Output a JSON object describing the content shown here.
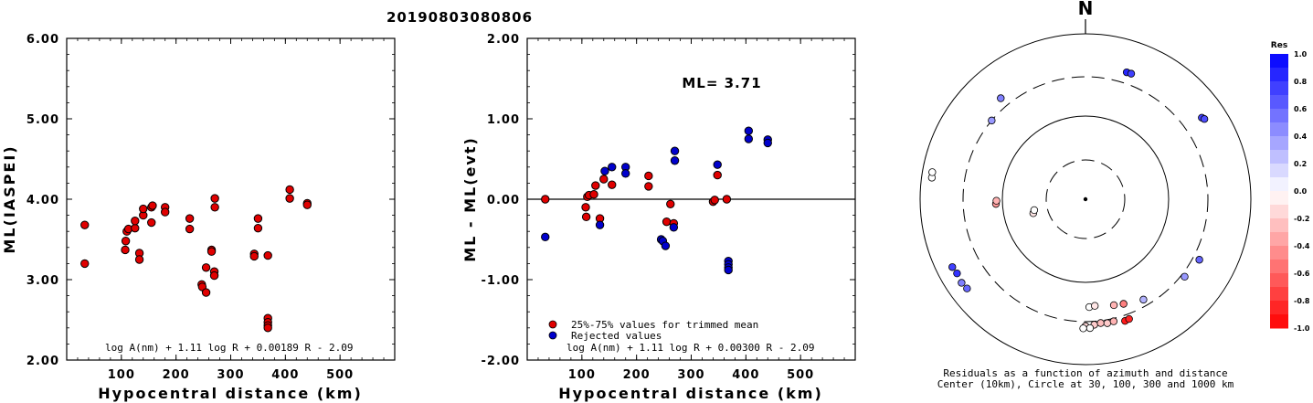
{
  "title": "20190803080806",
  "chart_data": [
    {
      "type": "scatter",
      "ylabel": "ML(IASPEI)",
      "xlabel": "Hypocentral distance (km)",
      "xlim": [
        0,
        600
      ],
      "ylim": [
        2.0,
        6.0
      ],
      "xticks": [
        "100",
        "200",
        "300",
        "400",
        "500"
      ],
      "yticks": [
        "2.00",
        "3.00",
        "4.00",
        "5.00",
        "6.00"
      ],
      "formula": "log A(nm) + 1.11 log R + 0.00189 R - 2.09",
      "series": [
        {
          "color": "#e00000",
          "points": [
            [
              33,
              3.68
            ],
            [
              33,
              3.2
            ],
            [
              107,
              3.37
            ],
            [
              108,
              3.48
            ],
            [
              110,
              3.6
            ],
            [
              113,
              3.63
            ],
            [
              125,
              3.64
            ],
            [
              125,
              3.73
            ],
            [
              133,
              3.33
            ],
            [
              133,
              3.25
            ],
            [
              140,
              3.8
            ],
            [
              140,
              3.88
            ],
            [
              155,
              3.9
            ],
            [
              155,
              3.71
            ],
            [
              157,
              3.92
            ],
            [
              180,
              3.9
            ],
            [
              180,
              3.84
            ],
            [
              225,
              3.76
            ],
            [
              225,
              3.63
            ],
            [
              247,
              2.94
            ],
            [
              248,
              2.91
            ],
            [
              255,
              3.15
            ],
            [
              255,
              2.84
            ],
            [
              265,
              3.37
            ],
            [
              265,
              3.35
            ],
            [
              270,
              3.1
            ],
            [
              270,
              3.05
            ],
            [
              271,
              3.9
            ],
            [
              271,
              4.01
            ],
            [
              343,
              3.32
            ],
            [
              343,
              3.29
            ],
            [
              350,
              3.76
            ],
            [
              350,
              3.64
            ],
            [
              368,
              3.3
            ],
            [
              368,
              2.52
            ],
            [
              368,
              2.47
            ],
            [
              368,
              2.43
            ],
            [
              368,
              2.4
            ],
            [
              408,
              4.12
            ],
            [
              408,
              4.01
            ],
            [
              440,
              3.95
            ],
            [
              440,
              3.93
            ]
          ]
        }
      ]
    },
    {
      "type": "scatter",
      "ylabel": "ML - ML(evt)",
      "xlabel": "Hypocentral distance (km)",
      "xlim": [
        0,
        600
      ],
      "ylim": [
        -2.0,
        2.0
      ],
      "xticks": [
        "100",
        "200",
        "300",
        "400",
        "500"
      ],
      "yticks": [
        "-2.00",
        "-1.00",
        "0.00",
        "1.00",
        "2.00"
      ],
      "annotation": "ML= 3.71",
      "formula": "log A(nm) + 1.11 log R + 0.00300 R - 2.09",
      "legend": [
        {
          "label": "25%-75% values for trimmed mean",
          "color": "#e00000"
        },
        {
          "label": "Rejected values",
          "color": "#0000cc"
        }
      ],
      "series": [
        {
          "name": "25%-75% values for trimmed mean",
          "color": "#e00000",
          "points": [
            [
              33,
              0.0
            ],
            [
              107,
              -0.1
            ],
            [
              108,
              -0.22
            ],
            [
              110,
              0.03
            ],
            [
              113,
              0.05
            ],
            [
              122,
              0.06
            ],
            [
              125,
              0.17
            ],
            [
              133,
              -0.24
            ],
            [
              140,
              0.25
            ],
            [
              155,
              0.18
            ],
            [
              222,
              0.29
            ],
            [
              222,
              0.16
            ],
            [
              255,
              -0.28
            ],
            [
              262,
              -0.06
            ],
            [
              268,
              -0.3
            ],
            [
              340,
              -0.03
            ],
            [
              343,
              -0.01
            ],
            [
              348,
              0.3
            ],
            [
              365,
              0.0
            ]
          ]
        },
        {
          "name": "Rejected values",
          "color": "#0000cc",
          "points": [
            [
              33,
              -0.47
            ],
            [
              133,
              -0.32
            ],
            [
              142,
              0.35
            ],
            [
              155,
              0.4
            ],
            [
              180,
              0.4
            ],
            [
              180,
              0.32
            ],
            [
              245,
              -0.5
            ],
            [
              248,
              -0.52
            ],
            [
              253,
              -0.58
            ],
            [
              268,
              -0.35
            ],
            [
              270,
              0.6
            ],
            [
              270,
              0.48
            ],
            [
              348,
              0.43
            ],
            [
              368,
              -0.77
            ],
            [
              368,
              -0.81
            ],
            [
              368,
              -0.85
            ],
            [
              368,
              -0.88
            ],
            [
              405,
              0.85
            ],
            [
              405,
              0.75
            ],
            [
              440,
              0.74
            ],
            [
              440,
              0.7
            ]
          ]
        }
      ]
    },
    {
      "type": "scatter",
      "subtype": "polar",
      "north_label": "N",
      "caption_line1": "Residuals as a function of azimuth and distance",
      "caption_line2": "Center (10km), Circle at 30, 100, 300 and 1000 km",
      "rings_km": [
        30,
        100,
        300,
        1000
      ],
      "colorbar": {
        "title": "Res",
        "ticks": [
          "1.0",
          "0.8",
          "0.6",
          "0.4",
          "0.2",
          "0.0",
          "-0.2",
          "-0.4",
          "-0.6",
          "-0.8",
          "-1.0"
        ]
      },
      "points": [
        {
          "azimuth_deg": 18,
          "distance_km": 408,
          "res": 0.85
        },
        {
          "azimuth_deg": 20,
          "distance_km": 410,
          "res": 0.75
        },
        {
          "azimuth_deg": 55,
          "distance_km": 520,
          "res": 0.74
        },
        {
          "azimuth_deg": 56,
          "distance_km": 540,
          "res": 0.7
        },
        {
          "azimuth_deg": 310,
          "distance_km": 300,
          "res": 0.4
        },
        {
          "azimuth_deg": 320,
          "distance_km": 390,
          "res": 0.5
        },
        {
          "azimuth_deg": 267,
          "distance_km": 120,
          "res": -0.4
        },
        {
          "azimuth_deg": 269,
          "distance_km": 118,
          "res": -0.3
        },
        {
          "azimuth_deg": 255,
          "distance_km": 45,
          "res": -0.1
        },
        {
          "azimuth_deg": 258,
          "distance_km": 43,
          "res": 0.0
        },
        {
          "azimuth_deg": 278,
          "distance_km": 750,
          "res": 0.0
        },
        {
          "azimuth_deg": 280,
          "distance_km": 760,
          "res": 0.0
        },
        {
          "azimuth_deg": 240,
          "distance_km": 620,
          "res": 0.8
        },
        {
          "azimuth_deg": 243,
          "distance_km": 640,
          "res": 0.75
        },
        {
          "azimuth_deg": 233,
          "distance_km": 620,
          "res": 0.6
        },
        {
          "azimuth_deg": 236,
          "distance_km": 640,
          "res": 0.5
        },
        {
          "azimuth_deg": 118,
          "distance_km": 360,
          "res": 0.6
        },
        {
          "azimuth_deg": 128,
          "distance_km": 330,
          "res": 0.4
        },
        {
          "azimuth_deg": 150,
          "distance_km": 250,
          "res": 0.3
        },
        {
          "azimuth_deg": 178,
          "distance_km": 200,
          "res": 0.0
        },
        {
          "azimuth_deg": 175,
          "distance_km": 195,
          "res": -0.1
        },
        {
          "azimuth_deg": 165,
          "distance_km": 210,
          "res": -0.3
        },
        {
          "azimuth_deg": 160,
          "distance_km": 220,
          "res": -0.5
        },
        {
          "azimuth_deg": 176,
          "distance_km": 330,
          "res": -0.2
        },
        {
          "azimuth_deg": 173,
          "distance_km": 320,
          "res": -0.25
        },
        {
          "azimuth_deg": 170,
          "distance_km": 330,
          "res": -0.2
        },
        {
          "azimuth_deg": 167,
          "distance_km": 325,
          "res": -0.3
        },
        {
          "azimuth_deg": 180,
          "distance_km": 340,
          "res": -0.15
        },
        {
          "azimuth_deg": 178,
          "distance_km": 360,
          "res": 0.0
        },
        {
          "azimuth_deg": 181,
          "distance_km": 362,
          "res": 0.0
        },
        {
          "azimuth_deg": 162,
          "distance_km": 350,
          "res": -0.9
        },
        {
          "azimuth_deg": 160,
          "distance_km": 345,
          "res": -0.85
        }
      ]
    }
  ]
}
